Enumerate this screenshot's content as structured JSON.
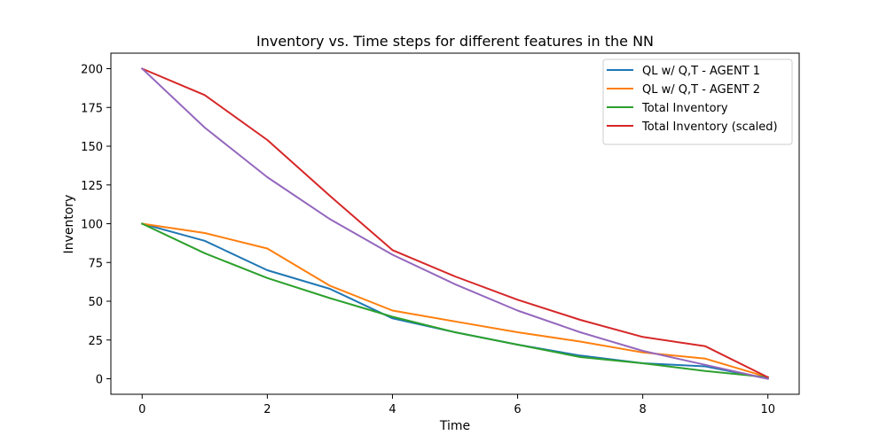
{
  "chart_data": {
    "type": "line",
    "title": "Inventory vs. Time steps for different features in the NN",
    "xlabel": "Time",
    "ylabel": "Inventory",
    "xlim": [
      -0.5,
      10.5
    ],
    "ylim": [
      -10,
      210
    ],
    "xticks": [
      0,
      2,
      4,
      6,
      8,
      10
    ],
    "yticks": [
      0,
      25,
      50,
      75,
      100,
      125,
      150,
      175,
      200
    ],
    "grid": false,
    "legend_position": "top-right",
    "x": [
      0,
      1,
      2,
      3,
      4,
      5,
      6,
      7,
      8,
      9,
      10
    ],
    "series": [
      {
        "name": "QL w/ Q,T - AGENT 1",
        "color": "#1f77b4",
        "in_legend": true,
        "values": [
          100,
          89,
          70,
          58,
          39,
          30,
          22,
          15,
          10,
          8,
          0
        ]
      },
      {
        "name": "QL w/ Q,T - AGENT 2",
        "color": "#ff7f0e",
        "in_legend": true,
        "values": [
          100,
          94,
          84,
          60,
          44,
          37,
          30,
          24,
          17,
          13,
          1
        ]
      },
      {
        "name": "Total Inventory",
        "color": "#2ca02c",
        "in_legend": true,
        "values": [
          100,
          81,
          65,
          52,
          40,
          30,
          22,
          14,
          10,
          5,
          1
        ]
      },
      {
        "name": "Total Inventory (scaled)",
        "color": "#d62728",
        "in_legend": true,
        "values": [
          200,
          183,
          154,
          118,
          83,
          66,
          51,
          38,
          27,
          21,
          1
        ]
      },
      {
        "name": "",
        "color": "#9467bd",
        "in_legend": false,
        "values": [
          200,
          162,
          130,
          103,
          80,
          61,
          44,
          30,
          18,
          9,
          0
        ]
      }
    ]
  }
}
